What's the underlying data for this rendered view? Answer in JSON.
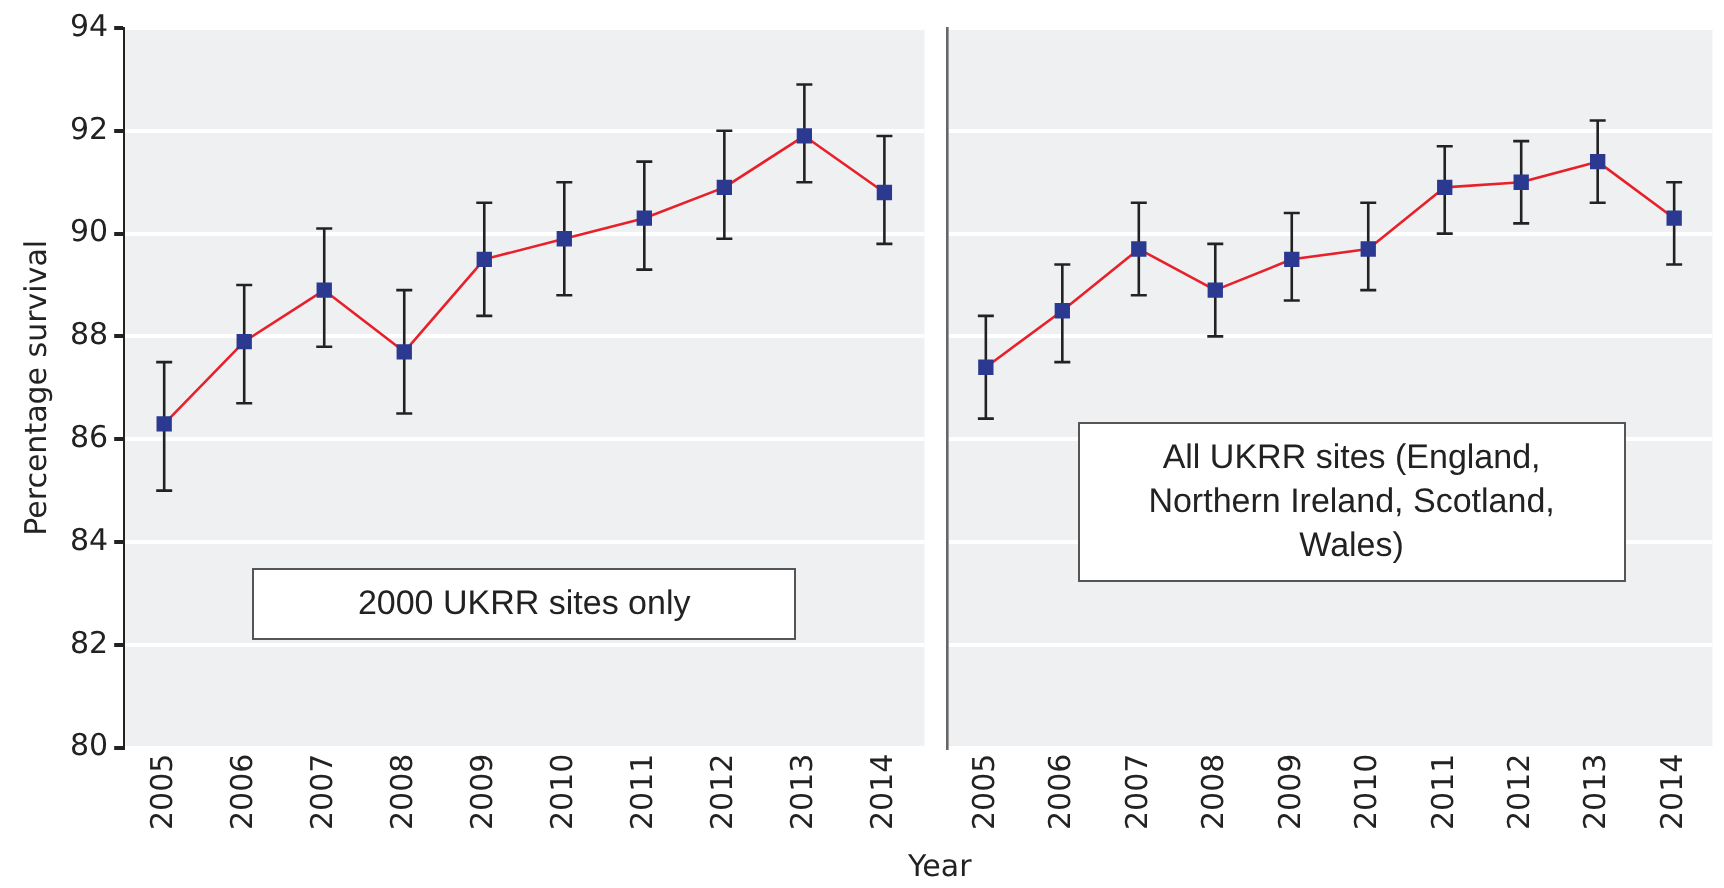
{
  "chart_data": [
    {
      "type": "line",
      "ylabel": "Percentage survival",
      "categories": [
        "2005",
        "2006",
        "2007",
        "2008",
        "2009",
        "2010",
        "2011",
        "2012",
        "2013",
        "2014"
      ],
      "series": [
        {
          "color": "#e8202a",
          "colors": [
            "#2b3990",
            "#2b3990",
            "#2b3990",
            "#2b3990",
            "#2b3990",
            "#2b3990",
            "#2b3990",
            "#2b3990",
            "#2b3990",
            "#2b3990"
          ],
          "values": [
            86.3,
            87.9,
            88.9,
            87.7,
            89.5,
            89.9,
            90.3,
            90.9,
            91.9,
            90.8
          ],
          "errors": [
            [
              85.0,
              87.5
            ],
            [
              86.7,
              89.0
            ],
            [
              87.8,
              90.1
            ],
            [
              86.5,
              88.9
            ],
            [
              88.4,
              90.6
            ],
            [
              88.8,
              91.0
            ],
            [
              89.3,
              91.4
            ],
            [
              89.9,
              92.0
            ],
            [
              91.0,
              92.9
            ],
            [
              89.8,
              91.9
            ]
          ]
        }
      ],
      "ylim": [
        80,
        94
      ],
      "yticks": [
        80,
        82,
        84,
        86,
        88,
        90,
        92,
        94
      ],
      "grid": "y",
      "legend": false,
      "marker": "square",
      "line_style": "solid",
      "annotations": [
        "2000 UKRR sites only"
      ]
    },
    {
      "type": "line",
      "xlabel": "Year",
      "categories": [
        "2005",
        "2006",
        "2007",
        "2008",
        "2009",
        "2010",
        "2011",
        "2012",
        "2013",
        "2014"
      ],
      "series": [
        {
          "color": "#e8202a",
          "colors": [
            "#2b3990",
            "#2b3990",
            "#2b3990",
            "#2b3990",
            "#2b3990",
            "#2b3990",
            "#2b3990",
            "#2b3990",
            "#2b3990",
            "#2b3990"
          ],
          "values": [
            87.4,
            88.5,
            89.7,
            88.9,
            89.5,
            89.7,
            90.9,
            91.0,
            91.4,
            90.3
          ],
          "errors": [
            [
              86.4,
              88.4
            ],
            [
              87.5,
              89.4
            ],
            [
              88.8,
              90.6
            ],
            [
              88.0,
              89.8
            ],
            [
              88.7,
              90.4
            ],
            [
              88.9,
              90.6
            ],
            [
              90.0,
              91.7
            ],
            [
              90.2,
              91.8
            ],
            [
              90.6,
              92.2
            ],
            [
              89.4,
              91.0
            ]
          ]
        }
      ],
      "ylim": [
        80,
        94
      ],
      "yticks": [
        80,
        82,
        84,
        86,
        88,
        90,
        92,
        94
      ],
      "grid": "y",
      "legend": false,
      "marker": "square",
      "line_style": "solid",
      "tick_labels": "x",
      "annotations": [
        "All UKRR sites (England, Northern Ireland, Scotland, Wales)"
      ]
    }
  ]
}
